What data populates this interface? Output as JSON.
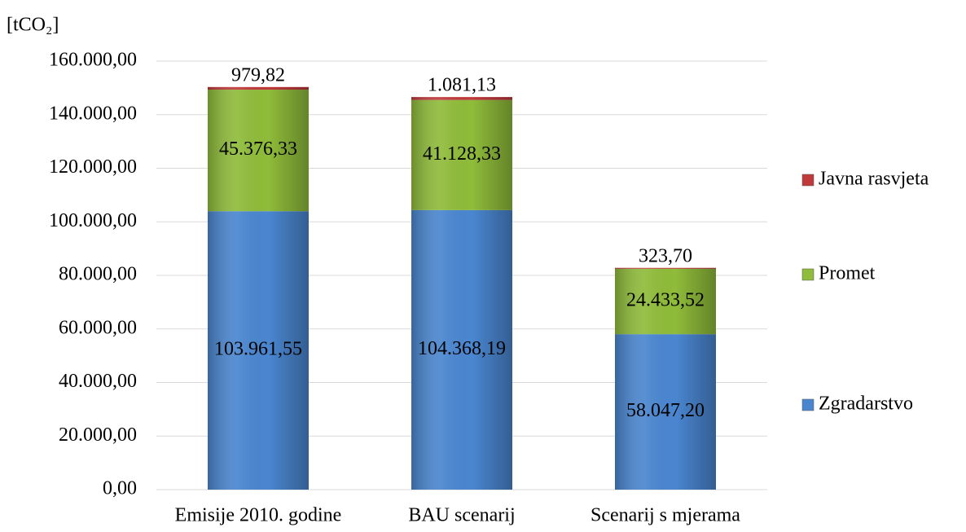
{
  "chart_data": {
    "type": "stacked_bar",
    "y_axis_label": "[tCO₂]",
    "categories": [
      "Emisije 2010. godine",
      "BAU scenarij",
      "Scenarij s mjerama"
    ],
    "series": [
      {
        "name": "Zgradarstvo",
        "color": "#4a86d0",
        "values": [
          103961.55,
          104368.19,
          58047.2
        ],
        "value_labels": [
          "103.961,55",
          "104.368,19",
          "58.047,20"
        ]
      },
      {
        "name": "Promet",
        "color": "#8fbc3a",
        "values": [
          45376.33,
          41128.33,
          24433.52
        ],
        "value_labels": [
          "45.376,33",
          "41.128,33",
          "24.433,52"
        ]
      },
      {
        "name": "Javna rasvjeta",
        "color": "#c0393b",
        "values": [
          979.82,
          1081.13,
          323.7
        ],
        "value_labels": [
          "979,82",
          "1.081,13",
          "323,70"
        ]
      }
    ],
    "ylim": [
      0,
      160000
    ],
    "yticks": [
      {
        "value": 0,
        "label": "0,00"
      },
      {
        "value": 20000,
        "label": "20.000,00"
      },
      {
        "value": 40000,
        "label": "40.000,00"
      },
      {
        "value": 60000,
        "label": "60.000,00"
      },
      {
        "value": 80000,
        "label": "80.000,00"
      },
      {
        "value": 100000,
        "label": "100.000,00"
      },
      {
        "value": 120000,
        "label": "120.000,00"
      },
      {
        "value": 140000,
        "label": "140.000,00"
      },
      {
        "value": 160000,
        "label": "160.000,00"
      }
    ],
    "grid": true,
    "legend": "right"
  }
}
